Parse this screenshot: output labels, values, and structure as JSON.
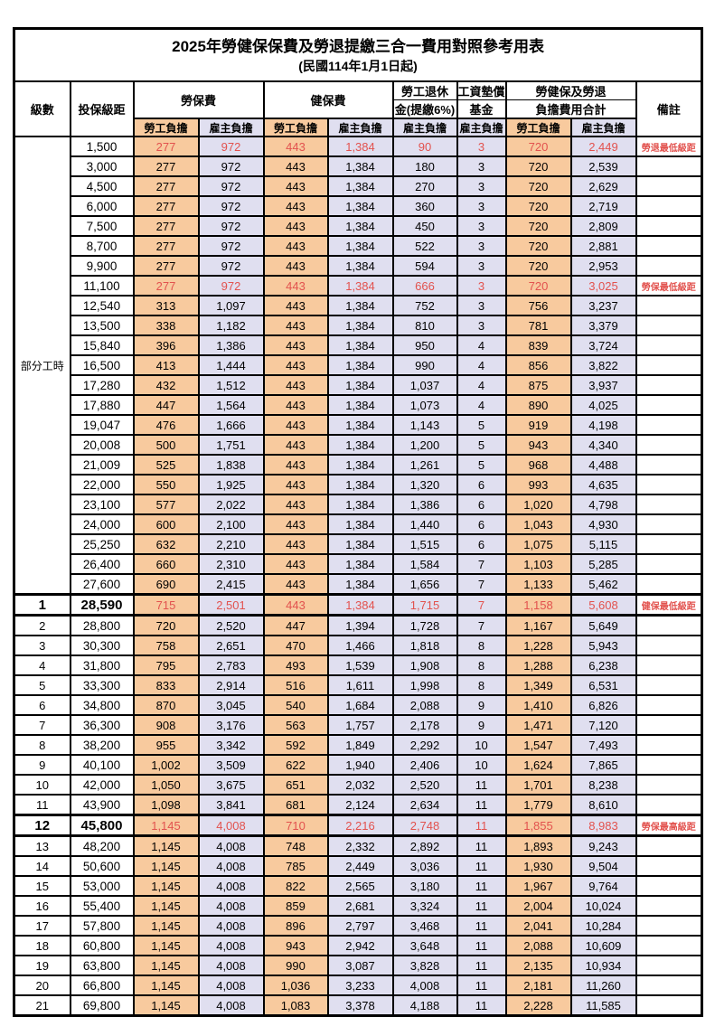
{
  "title": "2025年勞健保保費及勞退提繳三合一費用對照參考用表",
  "subtitle": "(民國114年1月1日起)",
  "header": {
    "level": "級數",
    "bracket": "投保級距",
    "labor_insurance": "勞保費",
    "health_insurance": "健保費",
    "pension_line1": "勞工退休",
    "pension_line2": "金(提繳6%)",
    "wage_fund_line1": "工資墊償",
    "wage_fund_line2": "基金",
    "total_line1": "勞健保及勞退",
    "total_line2": "負擔費用合計",
    "remarks": "備註",
    "employee": "勞工負擔",
    "employer": "雇主負擔"
  },
  "colors": {
    "employee_bg": "#f8ca9e",
    "employer_bg": "#e0dff0",
    "highlight_text": "#e2524e",
    "border": "#000000"
  },
  "table": {
    "part_time_label": "部分工時",
    "rows": [
      {
        "level": "",
        "bracket": "1,500",
        "li_emp": "277",
        "li_er": "972",
        "hi_emp": "443",
        "hi_er": "1,384",
        "pension": "90",
        "fund": "3",
        "tot_emp": "720",
        "tot_er": "2,449",
        "remark": "勞退最低級距",
        "hl": true,
        "em": false
      },
      {
        "level": "",
        "bracket": "3,000",
        "li_emp": "277",
        "li_er": "972",
        "hi_emp": "443",
        "hi_er": "1,384",
        "pension": "180",
        "fund": "3",
        "tot_emp": "720",
        "tot_er": "2,539",
        "remark": "",
        "hl": false,
        "em": false
      },
      {
        "level": "",
        "bracket": "4,500",
        "li_emp": "277",
        "li_er": "972",
        "hi_emp": "443",
        "hi_er": "1,384",
        "pension": "270",
        "fund": "3",
        "tot_emp": "720",
        "tot_er": "2,629",
        "remark": "",
        "hl": false,
        "em": false
      },
      {
        "level": "",
        "bracket": "6,000",
        "li_emp": "277",
        "li_er": "972",
        "hi_emp": "443",
        "hi_er": "1,384",
        "pension": "360",
        "fund": "3",
        "tot_emp": "720",
        "tot_er": "2,719",
        "remark": "",
        "hl": false,
        "em": false
      },
      {
        "level": "",
        "bracket": "7,500",
        "li_emp": "277",
        "li_er": "972",
        "hi_emp": "443",
        "hi_er": "1,384",
        "pension": "450",
        "fund": "3",
        "tot_emp": "720",
        "tot_er": "2,809",
        "remark": "",
        "hl": false,
        "em": false
      },
      {
        "level": "",
        "bracket": "8,700",
        "li_emp": "277",
        "li_er": "972",
        "hi_emp": "443",
        "hi_er": "1,384",
        "pension": "522",
        "fund": "3",
        "tot_emp": "720",
        "tot_er": "2,881",
        "remark": "",
        "hl": false,
        "em": false
      },
      {
        "level": "",
        "bracket": "9,900",
        "li_emp": "277",
        "li_er": "972",
        "hi_emp": "443",
        "hi_er": "1,384",
        "pension": "594",
        "fund": "3",
        "tot_emp": "720",
        "tot_er": "2,953",
        "remark": "",
        "hl": false,
        "em": false
      },
      {
        "level": "",
        "bracket": "11,100",
        "li_emp": "277",
        "li_er": "972",
        "hi_emp": "443",
        "hi_er": "1,384",
        "pension": "666",
        "fund": "3",
        "tot_emp": "720",
        "tot_er": "3,025",
        "remark": "勞保最低級距",
        "hl": true,
        "em": false
      },
      {
        "level": "",
        "bracket": "12,540",
        "li_emp": "313",
        "li_er": "1,097",
        "hi_emp": "443",
        "hi_er": "1,384",
        "pension": "752",
        "fund": "3",
        "tot_emp": "756",
        "tot_er": "3,237",
        "remark": "",
        "hl": false,
        "em": false
      },
      {
        "level": "",
        "bracket": "13,500",
        "li_emp": "338",
        "li_er": "1,182",
        "hi_emp": "443",
        "hi_er": "1,384",
        "pension": "810",
        "fund": "3",
        "tot_emp": "781",
        "tot_er": "3,379",
        "remark": "",
        "hl": false,
        "em": false
      },
      {
        "level": "",
        "bracket": "15,840",
        "li_emp": "396",
        "li_er": "1,386",
        "hi_emp": "443",
        "hi_er": "1,384",
        "pension": "950",
        "fund": "4",
        "tot_emp": "839",
        "tot_er": "3,724",
        "remark": "",
        "hl": false,
        "em": false
      },
      {
        "level": "",
        "bracket": "16,500",
        "li_emp": "413",
        "li_er": "1,444",
        "hi_emp": "443",
        "hi_er": "1,384",
        "pension": "990",
        "fund": "4",
        "tot_emp": "856",
        "tot_er": "3,822",
        "remark": "",
        "hl": false,
        "em": false
      },
      {
        "level": "",
        "bracket": "17,280",
        "li_emp": "432",
        "li_er": "1,512",
        "hi_emp": "443",
        "hi_er": "1,384",
        "pension": "1,037",
        "fund": "4",
        "tot_emp": "875",
        "tot_er": "3,937",
        "remark": "",
        "hl": false,
        "em": false
      },
      {
        "level": "",
        "bracket": "17,880",
        "li_emp": "447",
        "li_er": "1,564",
        "hi_emp": "443",
        "hi_er": "1,384",
        "pension": "1,073",
        "fund": "4",
        "tot_emp": "890",
        "tot_er": "4,025",
        "remark": "",
        "hl": false,
        "em": false
      },
      {
        "level": "",
        "bracket": "19,047",
        "li_emp": "476",
        "li_er": "1,666",
        "hi_emp": "443",
        "hi_er": "1,384",
        "pension": "1,143",
        "fund": "5",
        "tot_emp": "919",
        "tot_er": "4,198",
        "remark": "",
        "hl": false,
        "em": false
      },
      {
        "level": "",
        "bracket": "20,008",
        "li_emp": "500",
        "li_er": "1,751",
        "hi_emp": "443",
        "hi_er": "1,384",
        "pension": "1,200",
        "fund": "5",
        "tot_emp": "943",
        "tot_er": "4,340",
        "remark": "",
        "hl": false,
        "em": false
      },
      {
        "level": "",
        "bracket": "21,009",
        "li_emp": "525",
        "li_er": "1,838",
        "hi_emp": "443",
        "hi_er": "1,384",
        "pension": "1,261",
        "fund": "5",
        "tot_emp": "968",
        "tot_er": "4,488",
        "remark": "",
        "hl": false,
        "em": false
      },
      {
        "level": "",
        "bracket": "22,000",
        "li_emp": "550",
        "li_er": "1,925",
        "hi_emp": "443",
        "hi_er": "1,384",
        "pension": "1,320",
        "fund": "6",
        "tot_emp": "993",
        "tot_er": "4,635",
        "remark": "",
        "hl": false,
        "em": false
      },
      {
        "level": "",
        "bracket": "23,100",
        "li_emp": "577",
        "li_er": "2,022",
        "hi_emp": "443",
        "hi_er": "1,384",
        "pension": "1,386",
        "fund": "6",
        "tot_emp": "1,020",
        "tot_er": "4,798",
        "remark": "",
        "hl": false,
        "em": false
      },
      {
        "level": "",
        "bracket": "24,000",
        "li_emp": "600",
        "li_er": "2,100",
        "hi_emp": "443",
        "hi_er": "1,384",
        "pension": "1,440",
        "fund": "6",
        "tot_emp": "1,043",
        "tot_er": "4,930",
        "remark": "",
        "hl": false,
        "em": false
      },
      {
        "level": "",
        "bracket": "25,250",
        "li_emp": "632",
        "li_er": "2,210",
        "hi_emp": "443",
        "hi_er": "1,384",
        "pension": "1,515",
        "fund": "6",
        "tot_emp": "1,075",
        "tot_er": "5,115",
        "remark": "",
        "hl": false,
        "em": false
      },
      {
        "level": "",
        "bracket": "26,400",
        "li_emp": "660",
        "li_er": "2,310",
        "hi_emp": "443",
        "hi_er": "1,384",
        "pension": "1,584",
        "fund": "7",
        "tot_emp": "1,103",
        "tot_er": "5,285",
        "remark": "",
        "hl": false,
        "em": false
      },
      {
        "level": "",
        "bracket": "27,600",
        "li_emp": "690",
        "li_er": "2,415",
        "hi_emp": "443",
        "hi_er": "1,384",
        "pension": "1,656",
        "fund": "7",
        "tot_emp": "1,133",
        "tot_er": "5,462",
        "remark": "",
        "hl": false,
        "em": false
      },
      {
        "level": "1",
        "bracket": "28,590",
        "li_emp": "715",
        "li_er": "2,501",
        "hi_emp": "443",
        "hi_er": "1,384",
        "pension": "1,715",
        "fund": "7",
        "tot_emp": "1,158",
        "tot_er": "5,608",
        "remark": "健保最低級距",
        "hl": true,
        "em": true
      },
      {
        "level": "2",
        "bracket": "28,800",
        "li_emp": "720",
        "li_er": "2,520",
        "hi_emp": "447",
        "hi_er": "1,394",
        "pension": "1,728",
        "fund": "7",
        "tot_emp": "1,167",
        "tot_er": "5,649",
        "remark": "",
        "hl": false,
        "em": false
      },
      {
        "level": "3",
        "bracket": "30,300",
        "li_emp": "758",
        "li_er": "2,651",
        "hi_emp": "470",
        "hi_er": "1,466",
        "pension": "1,818",
        "fund": "8",
        "tot_emp": "1,228",
        "tot_er": "5,943",
        "remark": "",
        "hl": false,
        "em": false
      },
      {
        "level": "4",
        "bracket": "31,800",
        "li_emp": "795",
        "li_er": "2,783",
        "hi_emp": "493",
        "hi_er": "1,539",
        "pension": "1,908",
        "fund": "8",
        "tot_emp": "1,288",
        "tot_er": "6,238",
        "remark": "",
        "hl": false,
        "em": false
      },
      {
        "level": "5",
        "bracket": "33,300",
        "li_emp": "833",
        "li_er": "2,914",
        "hi_emp": "516",
        "hi_er": "1,611",
        "pension": "1,998",
        "fund": "8",
        "tot_emp": "1,349",
        "tot_er": "6,531",
        "remark": "",
        "hl": false,
        "em": false
      },
      {
        "level": "6",
        "bracket": "34,800",
        "li_emp": "870",
        "li_er": "3,045",
        "hi_emp": "540",
        "hi_er": "1,684",
        "pension": "2,088",
        "fund": "9",
        "tot_emp": "1,410",
        "tot_er": "6,826",
        "remark": "",
        "hl": false,
        "em": false
      },
      {
        "level": "7",
        "bracket": "36,300",
        "li_emp": "908",
        "li_er": "3,176",
        "hi_emp": "563",
        "hi_er": "1,757",
        "pension": "2,178",
        "fund": "9",
        "tot_emp": "1,471",
        "tot_er": "7,120",
        "remark": "",
        "hl": false,
        "em": false
      },
      {
        "level": "8",
        "bracket": "38,200",
        "li_emp": "955",
        "li_er": "3,342",
        "hi_emp": "592",
        "hi_er": "1,849",
        "pension": "2,292",
        "fund": "10",
        "tot_emp": "1,547",
        "tot_er": "7,493",
        "remark": "",
        "hl": false,
        "em": false
      },
      {
        "level": "9",
        "bracket": "40,100",
        "li_emp": "1,002",
        "li_er": "3,509",
        "hi_emp": "622",
        "hi_er": "1,940",
        "pension": "2,406",
        "fund": "10",
        "tot_emp": "1,624",
        "tot_er": "7,865",
        "remark": "",
        "hl": false,
        "em": false
      },
      {
        "level": "10",
        "bracket": "42,000",
        "li_emp": "1,050",
        "li_er": "3,675",
        "hi_emp": "651",
        "hi_er": "2,032",
        "pension": "2,520",
        "fund": "11",
        "tot_emp": "1,701",
        "tot_er": "8,238",
        "remark": "",
        "hl": false,
        "em": false
      },
      {
        "level": "11",
        "bracket": "43,900",
        "li_emp": "1,098",
        "li_er": "3,841",
        "hi_emp": "681",
        "hi_er": "2,124",
        "pension": "2,634",
        "fund": "11",
        "tot_emp": "1,779",
        "tot_er": "8,610",
        "remark": "",
        "hl": false,
        "em": false
      },
      {
        "level": "12",
        "bracket": "45,800",
        "li_emp": "1,145",
        "li_er": "4,008",
        "hi_emp": "710",
        "hi_er": "2,216",
        "pension": "2,748",
        "fund": "11",
        "tot_emp": "1,855",
        "tot_er": "8,983",
        "remark": "勞保最高級距",
        "hl": true,
        "em": true
      },
      {
        "level": "13",
        "bracket": "48,200",
        "li_emp": "1,145",
        "li_er": "4,008",
        "hi_emp": "748",
        "hi_er": "2,332",
        "pension": "2,892",
        "fund": "11",
        "tot_emp": "1,893",
        "tot_er": "9,243",
        "remark": "",
        "hl": false,
        "em": false
      },
      {
        "level": "14",
        "bracket": "50,600",
        "li_emp": "1,145",
        "li_er": "4,008",
        "hi_emp": "785",
        "hi_er": "2,449",
        "pension": "3,036",
        "fund": "11",
        "tot_emp": "1,930",
        "tot_er": "9,504",
        "remark": "",
        "hl": false,
        "em": false
      },
      {
        "level": "15",
        "bracket": "53,000",
        "li_emp": "1,145",
        "li_er": "4,008",
        "hi_emp": "822",
        "hi_er": "2,565",
        "pension": "3,180",
        "fund": "11",
        "tot_emp": "1,967",
        "tot_er": "9,764",
        "remark": "",
        "hl": false,
        "em": false
      },
      {
        "level": "16",
        "bracket": "55,400",
        "li_emp": "1,145",
        "li_er": "4,008",
        "hi_emp": "859",
        "hi_er": "2,681",
        "pension": "3,324",
        "fund": "11",
        "tot_emp": "2,004",
        "tot_er": "10,024",
        "remark": "",
        "hl": false,
        "em": false
      },
      {
        "level": "17",
        "bracket": "57,800",
        "li_emp": "1,145",
        "li_er": "4,008",
        "hi_emp": "896",
        "hi_er": "2,797",
        "pension": "3,468",
        "fund": "11",
        "tot_emp": "2,041",
        "tot_er": "10,284",
        "remark": "",
        "hl": false,
        "em": false
      },
      {
        "level": "18",
        "bracket": "60,800",
        "li_emp": "1,145",
        "li_er": "4,008",
        "hi_emp": "943",
        "hi_er": "2,942",
        "pension": "3,648",
        "fund": "11",
        "tot_emp": "2,088",
        "tot_er": "10,609",
        "remark": "",
        "hl": false,
        "em": false
      },
      {
        "level": "19",
        "bracket": "63,800",
        "li_emp": "1,145",
        "li_er": "4,008",
        "hi_emp": "990",
        "hi_er": "3,087",
        "pension": "3,828",
        "fund": "11",
        "tot_emp": "2,135",
        "tot_er": "10,934",
        "remark": "",
        "hl": false,
        "em": false
      },
      {
        "level": "20",
        "bracket": "66,800",
        "li_emp": "1,145",
        "li_er": "4,008",
        "hi_emp": "1,036",
        "hi_er": "3,233",
        "pension": "4,008",
        "fund": "11",
        "tot_emp": "2,181",
        "tot_er": "11,260",
        "remark": "",
        "hl": false,
        "em": false
      },
      {
        "level": "21",
        "bracket": "69,800",
        "li_emp": "1,145",
        "li_er": "4,008",
        "hi_emp": "1,083",
        "hi_er": "3,378",
        "pension": "4,188",
        "fund": "11",
        "tot_emp": "2,228",
        "tot_er": "11,585",
        "remark": "",
        "hl": false,
        "em": false
      }
    ]
  }
}
